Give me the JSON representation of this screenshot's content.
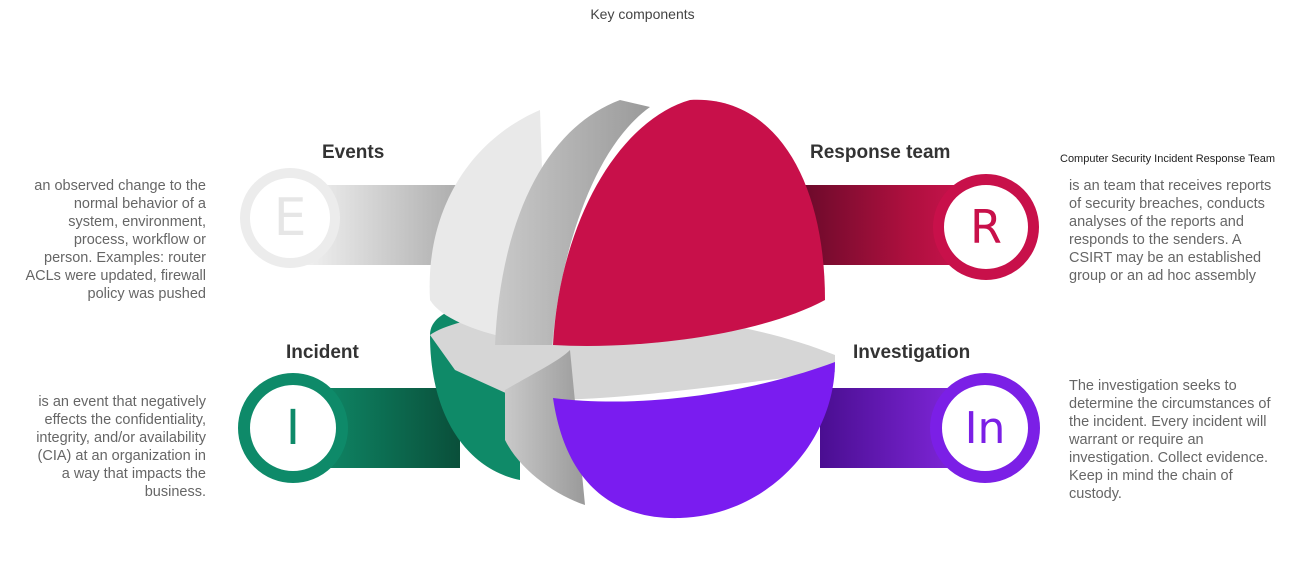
{
  "title": "Key components",
  "components": {
    "events": {
      "heading": "Events",
      "letter": "E",
      "color": "#e6e6e6",
      "description": [
        "an observed change to the",
        "normal behavior of a",
        "system, environment,",
        "process, workflow or",
        "person. Examples: router",
        "ACLs were updated, firewall",
        "policy was pushed"
      ]
    },
    "response_team": {
      "heading": "Response team",
      "subheading": "Computer Security Incident Response Team",
      "letter": "R",
      "color": "#c8104a",
      "description": [
        "is an team that receives reports",
        "of security breaches, conducts",
        "analyses of the reports and",
        "responds to the senders. A",
        "CSIRT may be an established",
        "group or an ad hoc assembly"
      ]
    },
    "incident": {
      "heading": "Incident",
      "letter": "I",
      "color": "#0e8a69",
      "description": [
        "is an event that negatively",
        "effects the confidentiality,",
        "integrity, and/or availability",
        "(CIA) at an organization in",
        "a way that impacts the",
        "business."
      ]
    },
    "investigation": {
      "heading": "Investigation",
      "letter": "In",
      "color": "#7b1fe6",
      "description": [
        "The investigation seeks to",
        "determine the circumstances of",
        "the incident. Every incident will",
        "warrant or require an",
        "investigation. Collect evidence.",
        "Keep in mind the chain of",
        "custody."
      ]
    }
  }
}
